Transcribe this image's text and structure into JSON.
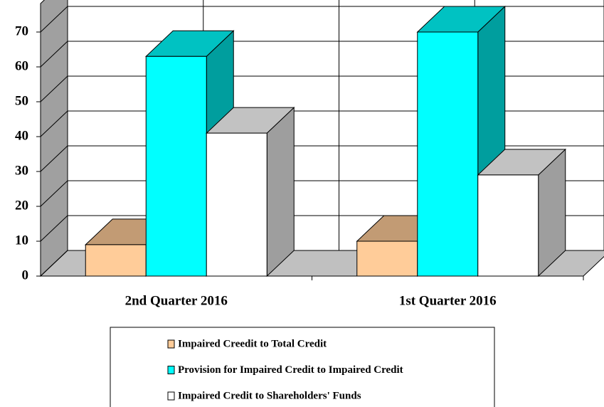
{
  "chart_data": {
    "type": "bar3d",
    "categories": [
      "2nd Quarter 2016",
      "1st Quarter 2016"
    ],
    "series": [
      {
        "name": "Impaired Creedit to Total Credit",
        "color": "#ffcc99",
        "values": [
          9,
          10
        ]
      },
      {
        "name": "Provision for Impaired Credit to Impaired Credit",
        "color": "#00ffff",
        "values": [
          63,
          70
        ]
      },
      {
        "name": "Impaired Credit to Shareholders' Funds",
        "color": "#ffffff",
        "values": [
          41,
          29
        ]
      }
    ],
    "ylim": [
      0,
      70
    ],
    "yticks": [
      0,
      10,
      20,
      30,
      40,
      50,
      60,
      70
    ],
    "grid": true,
    "legend": "bottom"
  }
}
